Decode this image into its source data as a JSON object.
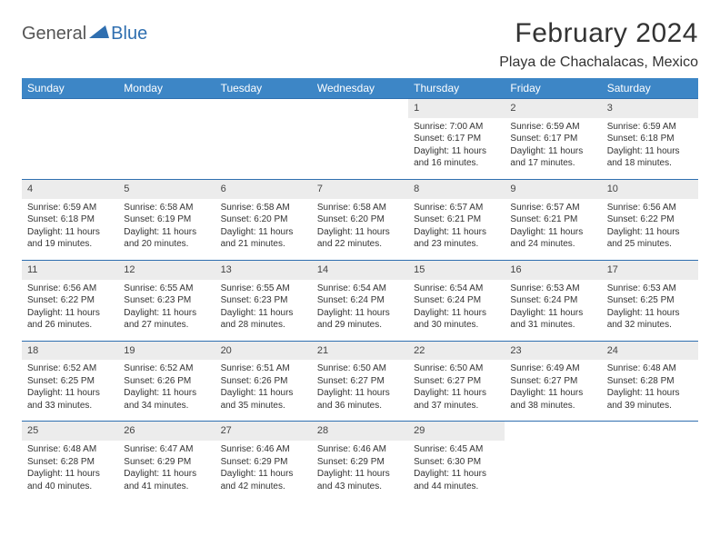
{
  "logo": {
    "text1": "General",
    "text2": "Blue"
  },
  "colors": {
    "header_bg": "#3d86c6",
    "daynum_bg": "#ececec",
    "rule": "#2f6fb0"
  },
  "title": "February 2024",
  "location": "Playa de Chachalacas, Mexico",
  "weekdays": [
    "Sunday",
    "Monday",
    "Tuesday",
    "Wednesday",
    "Thursday",
    "Friday",
    "Saturday"
  ],
  "weeks": [
    [
      null,
      null,
      null,
      null,
      {
        "d": "1",
        "sr": "Sunrise: 7:00 AM",
        "ss": "Sunset: 6:17 PM",
        "dl1": "Daylight: 11 hours",
        "dl2": "and 16 minutes."
      },
      {
        "d": "2",
        "sr": "Sunrise: 6:59 AM",
        "ss": "Sunset: 6:17 PM",
        "dl1": "Daylight: 11 hours",
        "dl2": "and 17 minutes."
      },
      {
        "d": "3",
        "sr": "Sunrise: 6:59 AM",
        "ss": "Sunset: 6:18 PM",
        "dl1": "Daylight: 11 hours",
        "dl2": "and 18 minutes."
      }
    ],
    [
      {
        "d": "4",
        "sr": "Sunrise: 6:59 AM",
        "ss": "Sunset: 6:18 PM",
        "dl1": "Daylight: 11 hours",
        "dl2": "and 19 minutes."
      },
      {
        "d": "5",
        "sr": "Sunrise: 6:58 AM",
        "ss": "Sunset: 6:19 PM",
        "dl1": "Daylight: 11 hours",
        "dl2": "and 20 minutes."
      },
      {
        "d": "6",
        "sr": "Sunrise: 6:58 AM",
        "ss": "Sunset: 6:20 PM",
        "dl1": "Daylight: 11 hours",
        "dl2": "and 21 minutes."
      },
      {
        "d": "7",
        "sr": "Sunrise: 6:58 AM",
        "ss": "Sunset: 6:20 PM",
        "dl1": "Daylight: 11 hours",
        "dl2": "and 22 minutes."
      },
      {
        "d": "8",
        "sr": "Sunrise: 6:57 AM",
        "ss": "Sunset: 6:21 PM",
        "dl1": "Daylight: 11 hours",
        "dl2": "and 23 minutes."
      },
      {
        "d": "9",
        "sr": "Sunrise: 6:57 AM",
        "ss": "Sunset: 6:21 PM",
        "dl1": "Daylight: 11 hours",
        "dl2": "and 24 minutes."
      },
      {
        "d": "10",
        "sr": "Sunrise: 6:56 AM",
        "ss": "Sunset: 6:22 PM",
        "dl1": "Daylight: 11 hours",
        "dl2": "and 25 minutes."
      }
    ],
    [
      {
        "d": "11",
        "sr": "Sunrise: 6:56 AM",
        "ss": "Sunset: 6:22 PM",
        "dl1": "Daylight: 11 hours",
        "dl2": "and 26 minutes."
      },
      {
        "d": "12",
        "sr": "Sunrise: 6:55 AM",
        "ss": "Sunset: 6:23 PM",
        "dl1": "Daylight: 11 hours",
        "dl2": "and 27 minutes."
      },
      {
        "d": "13",
        "sr": "Sunrise: 6:55 AM",
        "ss": "Sunset: 6:23 PM",
        "dl1": "Daylight: 11 hours",
        "dl2": "and 28 minutes."
      },
      {
        "d": "14",
        "sr": "Sunrise: 6:54 AM",
        "ss": "Sunset: 6:24 PM",
        "dl1": "Daylight: 11 hours",
        "dl2": "and 29 minutes."
      },
      {
        "d": "15",
        "sr": "Sunrise: 6:54 AM",
        "ss": "Sunset: 6:24 PM",
        "dl1": "Daylight: 11 hours",
        "dl2": "and 30 minutes."
      },
      {
        "d": "16",
        "sr": "Sunrise: 6:53 AM",
        "ss": "Sunset: 6:24 PM",
        "dl1": "Daylight: 11 hours",
        "dl2": "and 31 minutes."
      },
      {
        "d": "17",
        "sr": "Sunrise: 6:53 AM",
        "ss": "Sunset: 6:25 PM",
        "dl1": "Daylight: 11 hours",
        "dl2": "and 32 minutes."
      }
    ],
    [
      {
        "d": "18",
        "sr": "Sunrise: 6:52 AM",
        "ss": "Sunset: 6:25 PM",
        "dl1": "Daylight: 11 hours",
        "dl2": "and 33 minutes."
      },
      {
        "d": "19",
        "sr": "Sunrise: 6:52 AM",
        "ss": "Sunset: 6:26 PM",
        "dl1": "Daylight: 11 hours",
        "dl2": "and 34 minutes."
      },
      {
        "d": "20",
        "sr": "Sunrise: 6:51 AM",
        "ss": "Sunset: 6:26 PM",
        "dl1": "Daylight: 11 hours",
        "dl2": "and 35 minutes."
      },
      {
        "d": "21",
        "sr": "Sunrise: 6:50 AM",
        "ss": "Sunset: 6:27 PM",
        "dl1": "Daylight: 11 hours",
        "dl2": "and 36 minutes."
      },
      {
        "d": "22",
        "sr": "Sunrise: 6:50 AM",
        "ss": "Sunset: 6:27 PM",
        "dl1": "Daylight: 11 hours",
        "dl2": "and 37 minutes."
      },
      {
        "d": "23",
        "sr": "Sunrise: 6:49 AM",
        "ss": "Sunset: 6:27 PM",
        "dl1": "Daylight: 11 hours",
        "dl2": "and 38 minutes."
      },
      {
        "d": "24",
        "sr": "Sunrise: 6:48 AM",
        "ss": "Sunset: 6:28 PM",
        "dl1": "Daylight: 11 hours",
        "dl2": "and 39 minutes."
      }
    ],
    [
      {
        "d": "25",
        "sr": "Sunrise: 6:48 AM",
        "ss": "Sunset: 6:28 PM",
        "dl1": "Daylight: 11 hours",
        "dl2": "and 40 minutes."
      },
      {
        "d": "26",
        "sr": "Sunrise: 6:47 AM",
        "ss": "Sunset: 6:29 PM",
        "dl1": "Daylight: 11 hours",
        "dl2": "and 41 minutes."
      },
      {
        "d": "27",
        "sr": "Sunrise: 6:46 AM",
        "ss": "Sunset: 6:29 PM",
        "dl1": "Daylight: 11 hours",
        "dl2": "and 42 minutes."
      },
      {
        "d": "28",
        "sr": "Sunrise: 6:46 AM",
        "ss": "Sunset: 6:29 PM",
        "dl1": "Daylight: 11 hours",
        "dl2": "and 43 minutes."
      },
      {
        "d": "29",
        "sr": "Sunrise: 6:45 AM",
        "ss": "Sunset: 6:30 PM",
        "dl1": "Daylight: 11 hours",
        "dl2": "and 44 minutes."
      },
      null,
      null
    ]
  ]
}
